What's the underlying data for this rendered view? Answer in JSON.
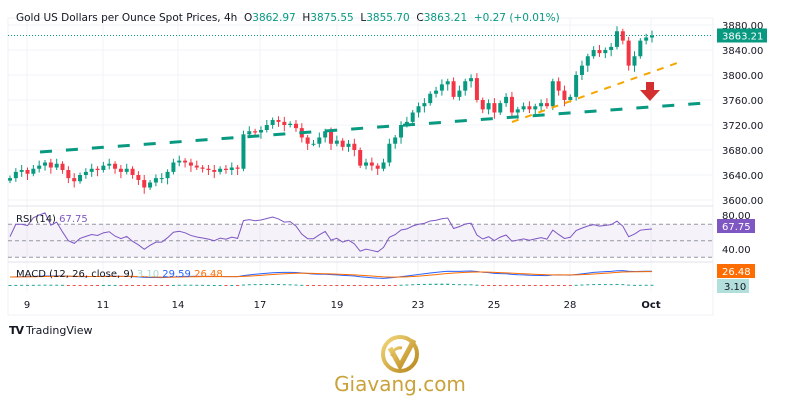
{
  "header": {
    "title": "Gold US Dollars per Ounce Spot Prices, 4h",
    "open_label": "O",
    "open": "3862.97",
    "high_label": "H",
    "high": "3875.55",
    "low_label": "L",
    "low": "3855.70",
    "close_label": "C",
    "close": "3863.21",
    "change": "+0.27 (+0.01%)"
  },
  "rsi": {
    "label": "RSI (14)",
    "value": "67.75",
    "axis": [
      "80.00",
      "40.00"
    ],
    "badge": "67.75"
  },
  "macd": {
    "label": "MACD (12, 26, close, 9)",
    "hist": "3.10",
    "macd": "29.59",
    "signal": "26.48",
    "badge_signal": "26.48",
    "badge_hist": "3.10"
  },
  "footer": {
    "tradingview": "TradingView",
    "brand": "Giavang.com"
  },
  "colors": {
    "up": "#089981",
    "down": "#f23645",
    "rsi": "#7e57c2",
    "macd": "#2962ff",
    "signal": "#ff6d00",
    "trend_green": "#089981",
    "trend_orange": "#f7a600",
    "arrow": "#d32f2f"
  },
  "chart_data": {
    "type": "candlestick",
    "title": "Gold US Dollars per Ounce Spot Prices, 4h",
    "ylim": [
      3590,
      3890
    ],
    "y_ticks": [
      "3880.00",
      "3840.00",
      "3800.00",
      "3760.00",
      "3720.00",
      "3680.00",
      "3640.00",
      "3600.00"
    ],
    "y_tick_values": [
      3880,
      3840,
      3800,
      3760,
      3720,
      3680,
      3640,
      3600
    ],
    "x_ticks": [
      "9",
      "11",
      "14",
      "17",
      "19",
      "23",
      "25",
      "28",
      "Oct"
    ],
    "last_price": "3863.21",
    "closes": [
      3635,
      3645,
      3648,
      3642,
      3650,
      3655,
      3660,
      3652,
      3658,
      3648,
      3635,
      3630,
      3640,
      3645,
      3650,
      3648,
      3655,
      3658,
      3650,
      3645,
      3650,
      3640,
      3632,
      3620,
      3628,
      3635,
      3635,
      3645,
      3660,
      3663,
      3660,
      3655,
      3652,
      3650,
      3648,
      3645,
      3650,
      3648,
      3652,
      3650,
      3705,
      3710,
      3708,
      3712,
      3720,
      3728,
      3725,
      3720,
      3722,
      3715,
      3700,
      3690,
      3690,
      3700,
      3710,
      3690,
      3695,
      3685,
      3690,
      3680,
      3655,
      3660,
      3655,
      3650,
      3660,
      3690,
      3700,
      3720,
      3725,
      3740,
      3750,
      3755,
      3770,
      3775,
      3785,
      3790,
      3765,
      3775,
      3790,
      3795,
      3760,
      3745,
      3755,
      3740,
      3755,
      3765,
      3740,
      3745,
      3750,
      3745,
      3750,
      3755,
      3750,
      3790,
      3775,
      3760,
      3765,
      3800,
      3815,
      3830,
      3840,
      3835,
      3840,
      3845,
      3870,
      3855,
      3815,
      3830,
      3855,
      3860,
      3863
    ]
  }
}
